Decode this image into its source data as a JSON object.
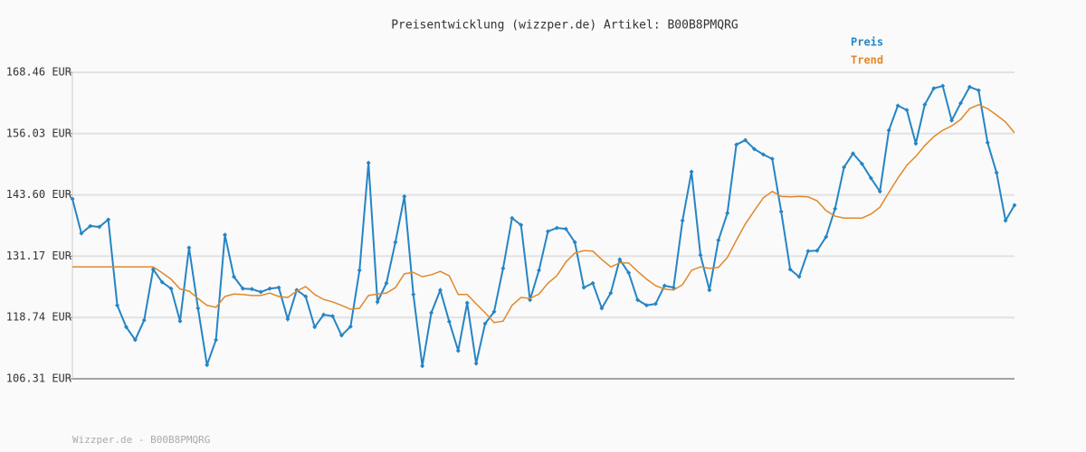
{
  "chart_data": {
    "type": "line",
    "title": "Preisentwicklung (wizzper.de) Artikel: B00B8PMQRG",
    "ylim": [
      106.31,
      168.46
    ],
    "yticks": [
      {
        "value": 106.31,
        "label": "106.31 EUR"
      },
      {
        "value": 118.74,
        "label": "118.74 EUR"
      },
      {
        "value": 131.17,
        "label": "131.17 EUR"
      },
      {
        "value": 143.6,
        "label": "143.60 EUR"
      },
      {
        "value": 156.03,
        "label": "156.03 EUR"
      },
      {
        "value": 168.46,
        "label": "168.46 EUR"
      }
    ],
    "grid": true,
    "legend": "top-right",
    "series": [
      {
        "name": "Preis",
        "color": "#2585c4",
        "markers": true,
        "values": [
          142.8,
          135.8,
          137.3,
          137.1,
          138.6,
          121.2,
          116.8,
          114.2,
          118.2,
          128.5,
          125.9,
          124.6,
          118.0,
          132.9,
          120.6,
          109.1,
          114.2,
          135.5,
          127.0,
          124.6,
          124.5,
          123.9,
          124.6,
          124.8,
          118.4,
          124.3,
          123.0,
          116.8,
          119.3,
          119.0,
          115.1,
          116.9,
          128.3,
          150.1,
          121.9,
          125.7,
          134.0,
          143.3,
          123.4,
          108.9,
          119.7,
          124.3,
          117.9,
          112.0,
          121.7,
          109.4,
          117.5,
          119.9,
          128.7,
          138.9,
          137.5,
          122.3,
          128.3,
          136.2,
          136.9,
          136.7,
          134.0,
          124.8,
          125.7,
          120.6,
          123.7,
          130.5,
          127.8,
          122.3,
          121.2,
          121.5,
          125.2,
          124.8,
          138.4,
          148.3,
          131.4,
          124.3,
          134.4,
          139.9,
          153.8,
          154.7,
          152.9,
          151.8,
          150.9,
          140.2,
          128.5,
          127.0,
          132.2,
          132.3,
          135.1,
          140.8,
          149.2,
          152.0,
          149.9,
          147.0,
          144.3,
          156.7,
          161.7,
          160.8,
          154.0,
          161.9,
          165.2,
          165.7,
          158.7,
          162.2,
          165.5,
          164.8,
          154.2,
          148.1,
          138.4,
          141.5
        ]
      },
      {
        "name": "Trend",
        "color": "#e0892a",
        "markers": false,
        "values": [
          129.0,
          129.0,
          129.0,
          129.0,
          129.0,
          129.0,
          129.0,
          129.0,
          129.0,
          129.0,
          127.8,
          126.5,
          124.5,
          124.1,
          122.6,
          121.2,
          120.8,
          123.0,
          123.5,
          123.4,
          123.2,
          123.2,
          123.7,
          123.0,
          122.8,
          124.1,
          125.0,
          123.4,
          122.4,
          121.9,
          121.2,
          120.4,
          120.6,
          123.2,
          123.5,
          123.7,
          124.8,
          127.6,
          127.9,
          127.0,
          127.4,
          128.1,
          127.2,
          123.4,
          123.4,
          121.5,
          119.7,
          117.7,
          118.0,
          121.2,
          122.8,
          122.6,
          123.5,
          125.7,
          127.2,
          130.0,
          131.8,
          132.3,
          132.2,
          130.5,
          129.0,
          129.8,
          129.8,
          128.1,
          126.5,
          125.2,
          124.5,
          124.3,
          125.4,
          128.3,
          129.0,
          128.7,
          128.9,
          130.9,
          134.4,
          137.7,
          140.4,
          143.0,
          144.3,
          143.3,
          143.2,
          143.3,
          143.2,
          142.4,
          140.4,
          139.3,
          138.9,
          138.9,
          138.9,
          139.7,
          141.1,
          144.1,
          147.0,
          149.6,
          151.4,
          153.6,
          155.4,
          156.7,
          157.6,
          158.9,
          161.1,
          161.9,
          161.1,
          159.8,
          158.4,
          156.2
        ]
      }
    ]
  },
  "footer": "Wizzper.de - B00B8PMQRG"
}
